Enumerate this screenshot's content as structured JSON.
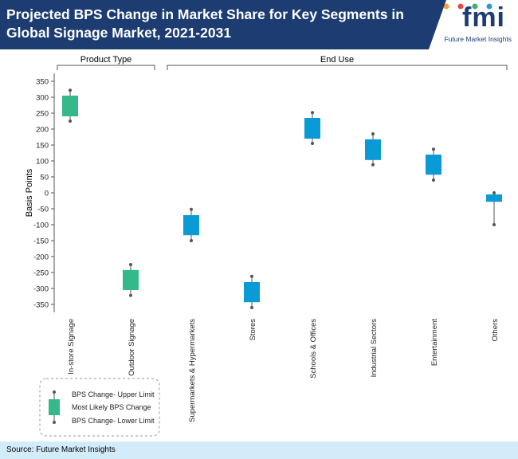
{
  "header": {
    "title": "Projected BPS Change in Market Share for Key Segments in Global Signage Market, 2021-2031",
    "logo_mark": "fmi",
    "logo_text": "Future Market Insights"
  },
  "footer": {
    "source": "Source: Future Market Insights"
  },
  "colors": {
    "header_bg": "#1c3c72",
    "product_type_box": "#33b98a",
    "end_use_box": "#0a9ad6",
    "whisker": "#555555",
    "footer_bg": "#d3ecfa"
  },
  "chart_data": {
    "type": "box",
    "ylabel": "Basis Points",
    "ylim": [
      -375,
      375
    ],
    "yticks": [
      350,
      300,
      250,
      200,
      150,
      100,
      50,
      0,
      -50,
      -100,
      -150,
      -200,
      -250,
      -300,
      -350
    ],
    "groups": [
      {
        "label": "Product Type",
        "categories": [
          "In-store Signage",
          "Outdoor Signage"
        ]
      },
      {
        "label": "End Use",
        "categories": [
          "Supermarkets & Hypermarkets",
          "Stores",
          "Schools & Offices",
          "Industrial Sectors",
          "Entertainment",
          "Others"
        ]
      }
    ],
    "series": [
      {
        "category": "In-store Signage",
        "group": "Product Type",
        "upper": 322,
        "box_top": 305,
        "box_bottom": 240,
        "lower": 225
      },
      {
        "category": "Outdoor Signage",
        "group": "Product Type",
        "upper": -225,
        "box_top": -242,
        "box_bottom": -305,
        "lower": -322
      },
      {
        "category": "Supermarkets & Hypermarkets",
        "group": "End Use",
        "upper": -52,
        "box_top": -70,
        "box_bottom": -133,
        "lower": -150
      },
      {
        "category": "Stores",
        "group": "End Use",
        "upper": -262,
        "box_top": -280,
        "box_bottom": -343,
        "lower": -360
      },
      {
        "category": "Schools & Offices",
        "group": "End Use",
        "upper": 252,
        "box_top": 235,
        "box_bottom": 170,
        "lower": 155
      },
      {
        "category": "Industrial Sectors",
        "group": "End Use",
        "upper": 185,
        "box_top": 168,
        "box_bottom": 103,
        "lower": 88
      },
      {
        "category": "Entertainment",
        "group": "End Use",
        "upper": 137,
        "box_top": 120,
        "box_bottom": 57,
        "lower": 40
      },
      {
        "category": "Others",
        "group": "End Use",
        "upper": 0,
        "box_top": -5,
        "box_bottom": -28,
        "lower": -100
      }
    ],
    "legend": {
      "placement": "bottom-left",
      "upper_label": "BPS Change- Upper Limit",
      "box_label": "Most Likely BPS Change",
      "lower_label": "BPS Change- Lower Limit"
    }
  }
}
